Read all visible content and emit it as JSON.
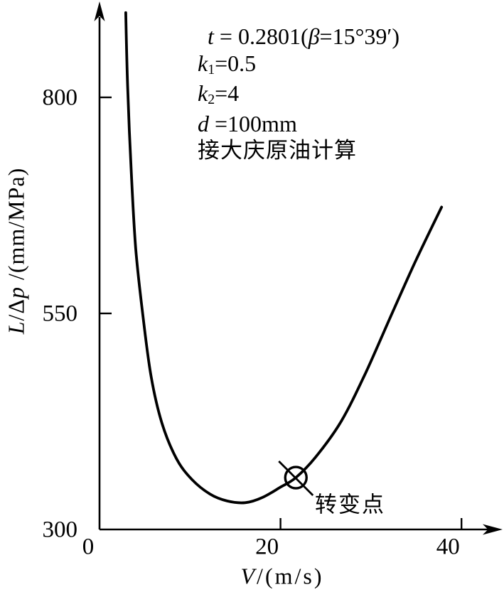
{
  "figure": {
    "background": "#ffffff",
    "ink": "#000000"
  },
  "axis_labels": {
    "y": {
      "l": "L",
      "slash_delta": "/Δ",
      "p": "p",
      "rest": " /(mm/MPa)"
    },
    "x": {
      "v": "V",
      "rest": "/(m/s)"
    },
    "origin": "0"
  },
  "params": {
    "line1": {
      "t": "t",
      "mid": " = 0.2801(",
      "beta": "β",
      "rest": "=15°39′)"
    },
    "line2": {
      "base": "k",
      "sub": "1",
      "rest": "=0.5"
    },
    "line3": {
      "base": "k",
      "sub": "2",
      "rest": "=4"
    },
    "line4": {
      "base": "d",
      "rest": " =100mm"
    },
    "line5": "接大庆原油计算"
  },
  "chart_data": {
    "type": "line",
    "title": "",
    "xlabel": "V/(m/s)",
    "ylabel": "L/Δp/(mm/MPa)",
    "xlim": [
      0,
      44
    ],
    "ylim": [
      300,
      910
    ],
    "grid": false,
    "legend": false,
    "x_ticks": [
      0,
      20,
      40
    ],
    "y_ticks": [
      300,
      550,
      800
    ],
    "series": [
      {
        "name": "pressure-gradient-curve",
        "x": [
          2.9,
          3.1,
          3.5,
          4.0,
          4.8,
          5.7,
          6.9,
          8.5,
          10.2,
          12.2,
          14.1,
          16.1,
          18.0,
          20.0,
          21.7,
          23.9,
          26.7,
          29.4,
          32.2,
          34.9,
          37.8
        ],
        "y": [
          898,
          814,
          715,
          625,
          547,
          477,
          423,
          382,
          358,
          341,
          333,
          331,
          337,
          349,
          360,
          384,
          425,
          481,
          547,
          610,
          673
        ]
      }
    ],
    "marker_point": {
      "x": 21.7,
      "y": 360,
      "label": "转变点"
    },
    "annotations": [
      "t = 0.2801(β=15°39′)",
      "k1=0.5",
      "k2=4",
      "d =100mm",
      "接大庆原油计算"
    ]
  }
}
